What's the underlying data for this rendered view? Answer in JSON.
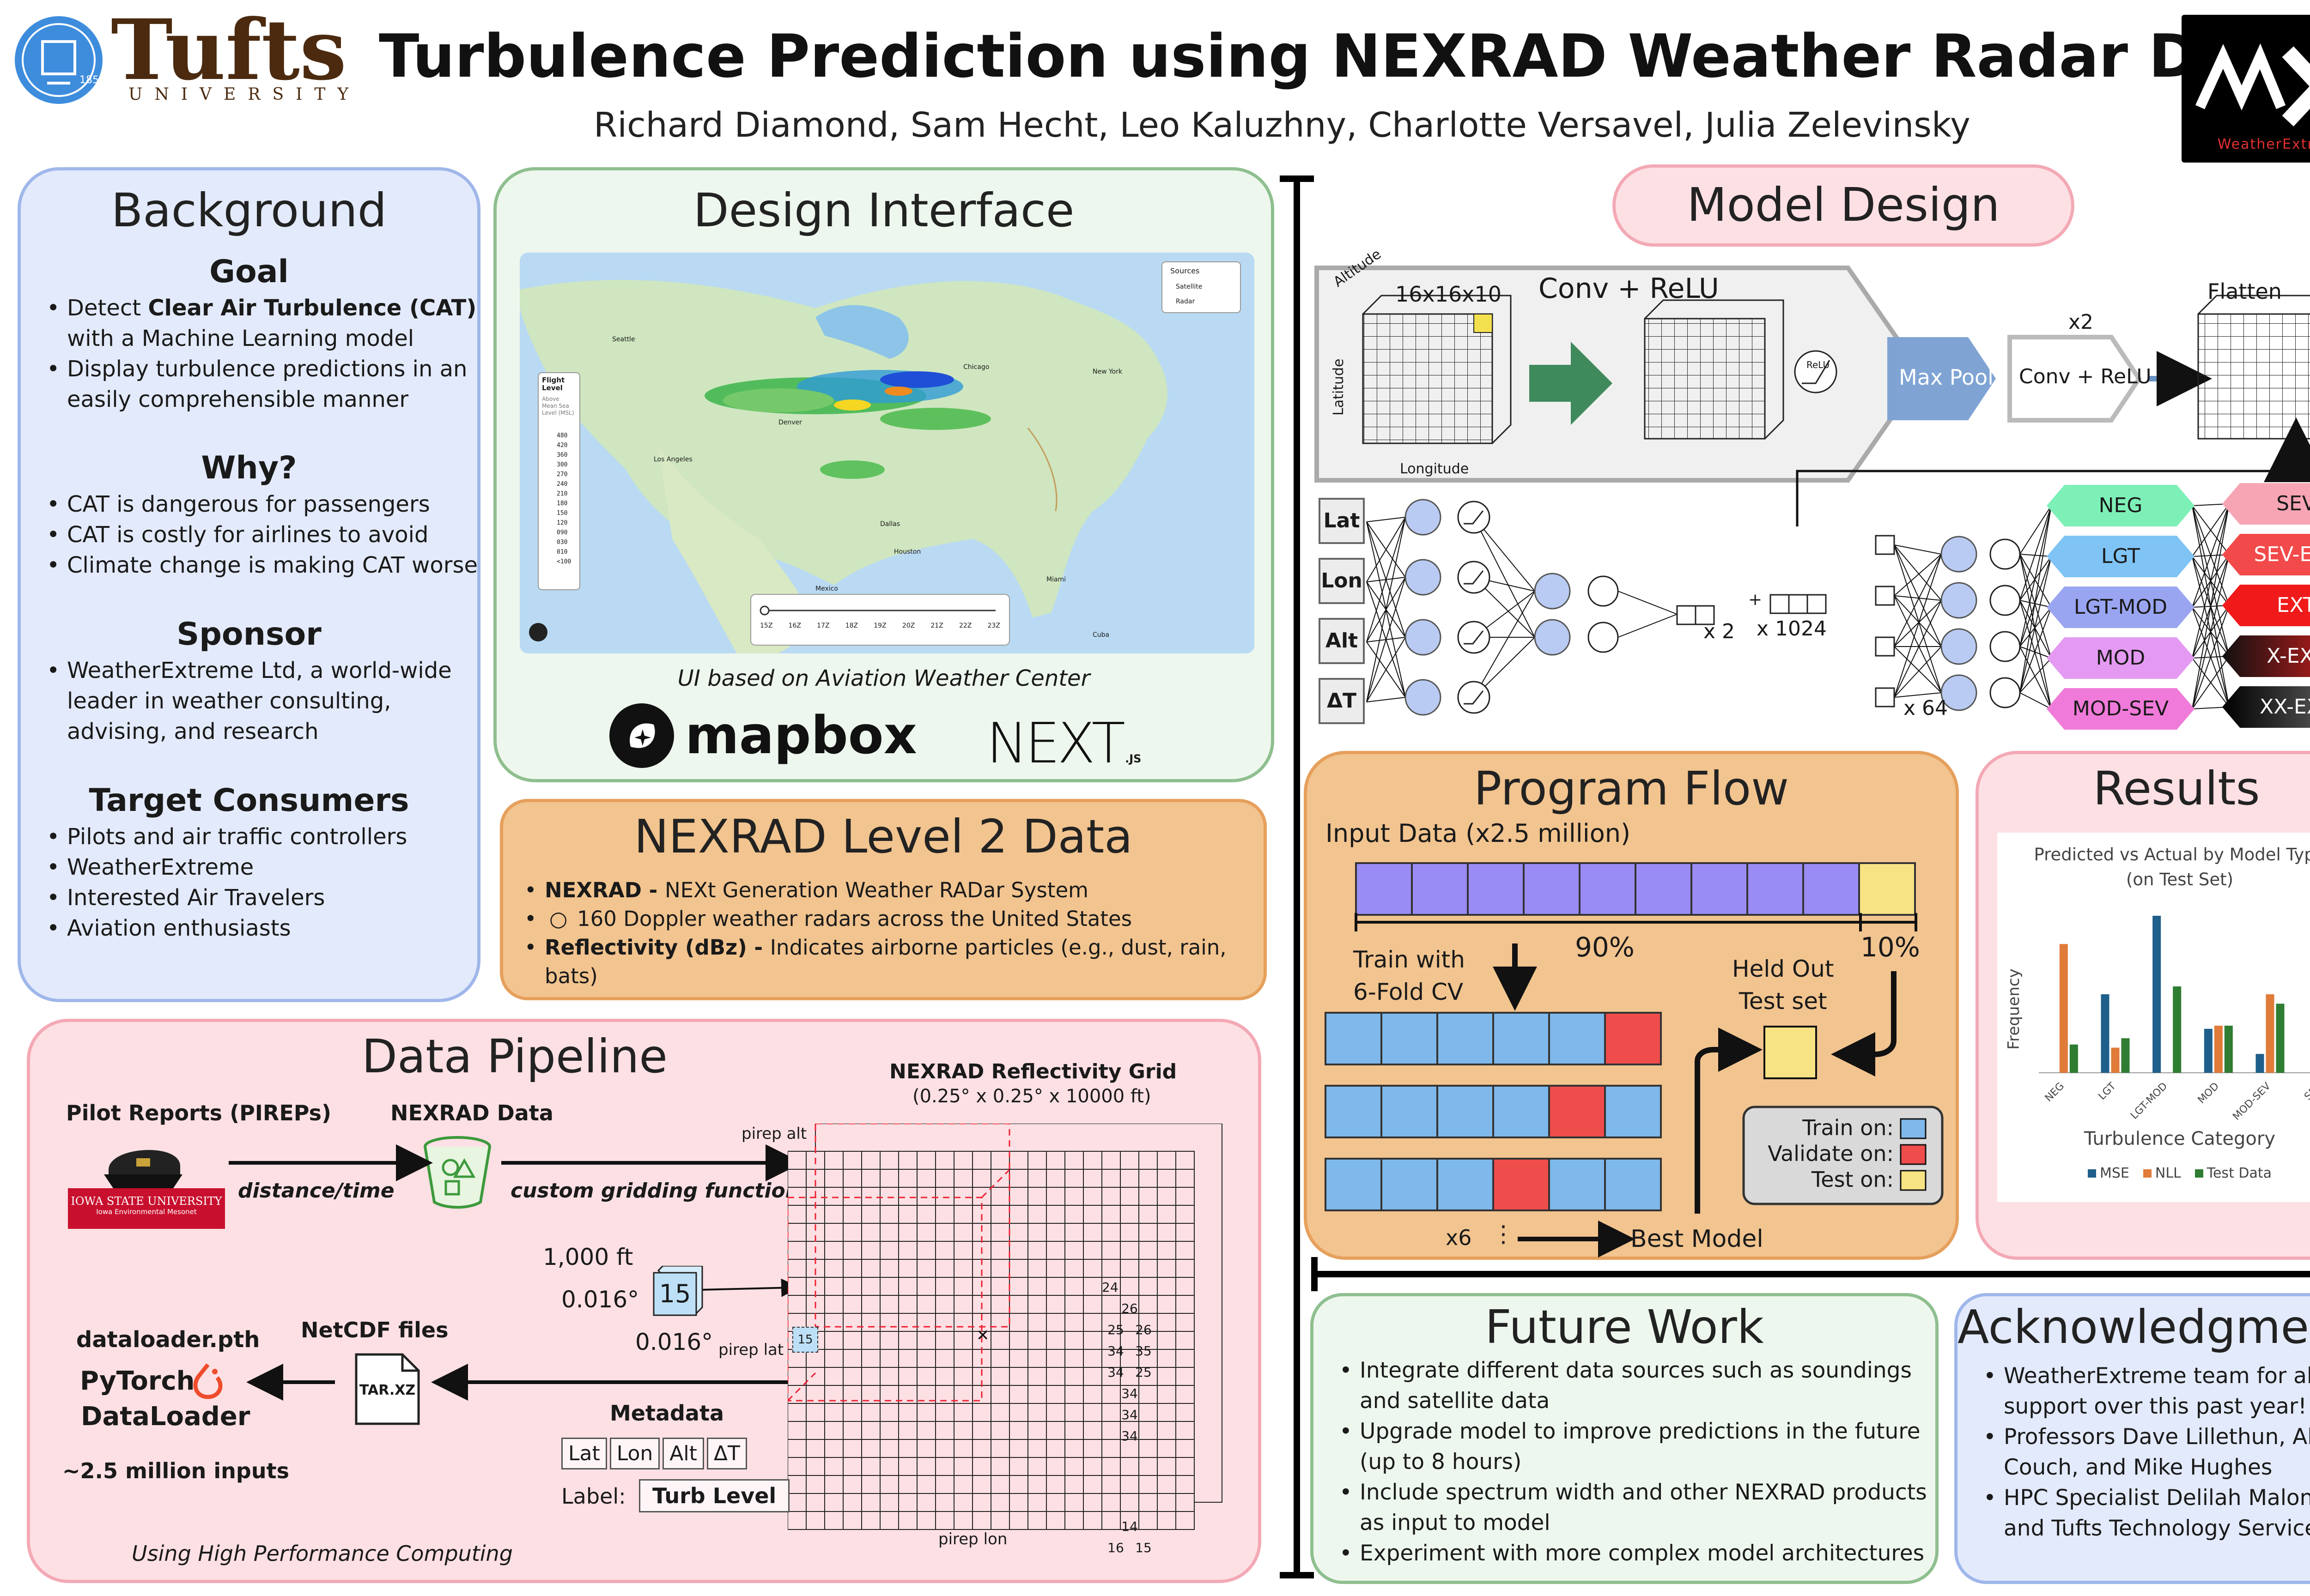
{
  "header": {
    "logo_left": "Tufts",
    "logo_left_sub": "UNIVERSITY",
    "seal_year": "1852",
    "title": "Turbulence Prediction using NEXRAD Weather Radar Data",
    "authors": "Richard Diamond, Sam Hecht, Leo Kaluzhny, Charlotte Versavel, Julia Zelevinsky",
    "logo_right": "WeatherExtreme"
  },
  "background": {
    "title": "Background",
    "goal": {
      "heading": "Goal",
      "items": [
        "Detect Clear Air Turbulence (CAT) with a Machine Learning model",
        "Display turbulence predictions in an easily comprehensible manner"
      ]
    },
    "why": {
      "heading": "Why?",
      "items": [
        "CAT is dangerous for passengers",
        "CAT is costly for airlines to avoid",
        "Climate change is making CAT worse"
      ]
    },
    "sponsor": {
      "heading": "Sponsor",
      "items": [
        "WeatherExtreme Ltd, a world-wide leader in weather consulting, advising, and research"
      ]
    },
    "consumers": {
      "heading": "Target Consumers",
      "items": [
        "Pilots and air traffic controllers",
        "WeatherExtreme",
        "Interested Air Travelers",
        "Aviation enthusiasts"
      ]
    }
  },
  "design": {
    "title": "Design Interface",
    "caption": "UI based on Aviation Weather Center",
    "mapbox": "mapbox",
    "next": "NEXT",
    "next_sub": ".JS",
    "map": {
      "sources_label": "Sources",
      "satellite": "Satellite",
      "radar": "Radar",
      "flight_level_title": "Flight Level",
      "flight_level_sub": "Above Mean Sea Level (MSL)",
      "levels": [
        "480",
        "420",
        "360",
        "300",
        "270",
        "240",
        "210",
        "180",
        "150",
        "120",
        "090",
        "030",
        "010",
        "<100"
      ],
      "times": [
        "15Z",
        "16Z",
        "17Z",
        "18Z",
        "19Z",
        "20Z",
        "21Z",
        "22Z",
        "23Z"
      ],
      "cities": [
        "Seattle",
        "Denver",
        "Los Angeles",
        "Chicago",
        "New York",
        "Dallas",
        "Houston",
        "Miami",
        "Cuba",
        "Mexico"
      ]
    }
  },
  "nexrad": {
    "title": "NEXRAD Level 2 Data",
    "b1_bold": "NEXRAD - ",
    "b1_text": "NEXt Generation Weather RADar System",
    "b1_sub": "160 Doppler weather radars across the United States",
    "b2_bold": "Reflectivity (dBz) - ",
    "b2_text": "Indicates airborne particles (e.g., dust, rain, bats)"
  },
  "pipeline": {
    "title": "Data Pipeline",
    "pireps": "Pilot Reports (PIREPs)",
    "iowa": "IOWA STATE UNIVERSITY",
    "iowa_sub": "Iowa Environmental Mesonet",
    "nexrad_data": "NEXRAD Data",
    "distance_time": "distance/time",
    "gridding": "custom gridding function",
    "grid_title": "NEXRAD Reflectivity Grid",
    "grid_sub": "(0.25° x 0.25° x 10000 ft)",
    "pirep_alt": "pirep alt",
    "pirep_lat": "pirep lat",
    "pirep_lon": "pirep lon",
    "cube_ft": "1,000 ft",
    "cube_deg1": "0.016°",
    "cube_deg2": "0.016°",
    "cube_value": "15",
    "dataloader_file": "dataloader.pth",
    "pytorch": "PyTorch",
    "dataloader": "DataLoader",
    "inputs": "~2.5 million inputs",
    "netcdf": "NetCDF files",
    "tarxz": "TAR.XZ",
    "metadata": "Metadata",
    "meta_cells": [
      "Lat",
      "Lon",
      "Alt",
      "ΔT"
    ],
    "label_key": "Label:",
    "label_val": "Turb Level",
    "hpc": "Using High Performance Computing",
    "grid_values": [
      "24",
      "26",
      "25",
      "26",
      "34",
      "35",
      "34",
      "25",
      "34",
      "34",
      "34",
      "14",
      "16",
      "15"
    ]
  },
  "model": {
    "title": "Model Design",
    "dims": "16x16x10",
    "altitude": "Altitude",
    "latitude": "Latitude",
    "longitude": "Longitude",
    "conv_relu": "Conv + ReLU",
    "relu": "ReLU",
    "maxpool": "Max Pool",
    "conv_relu2": "Conv + ReLU",
    "x2": "x2",
    "flatten": "Flatten",
    "inputs": [
      "Lat",
      "Lon",
      "Alt",
      "ΔT"
    ],
    "x2b": "x 2",
    "x1024": "x 1024",
    "plus": "+",
    "x64": "x 64",
    "classes_left": [
      "NEG",
      "LGT",
      "LGT-MOD",
      "MOD",
      "MOD-SEV"
    ],
    "classes_right": [
      "SEV",
      "SEV-EXT",
      "EXT",
      "X-EXT",
      "XX-EXT"
    ]
  },
  "flow": {
    "title": "Program Flow",
    "input": "Input Data (x2.5 million)",
    "pct_train": "90%",
    "pct_test": "10%",
    "train_cv": "Train with\n6-Fold CV",
    "held_out": "Held Out\nTest set",
    "x6": "x6",
    "dots": "⋮",
    "best": "Best Model",
    "legend": [
      "Train on:",
      "Validate on:",
      "Test on:"
    ]
  },
  "results": {
    "title": "Results",
    "chart_title": "Predicted vs Actual by Model Type",
    "chart_subtitle": "(on Test Set)",
    "ylabel": "Frequency",
    "xlabel": "Turbulence Category",
    "legend": [
      "MSE",
      "NLL",
      "Test Data"
    ]
  },
  "chart_data": {
    "type": "bar",
    "title": "Predicted vs Actual by Model Type",
    "subtitle": "(on Test Set)",
    "categories": [
      "NEG",
      "LGT",
      "LGT-MOD",
      "MOD",
      "MOD-SEV",
      "SEV"
    ],
    "xlabel": "Turbulence Category",
    "ylabel": "Frequency",
    "legend_position": "bottom",
    "series": [
      {
        "name": "MSE",
        "color": "#1f5f8b",
        "values": [
          0,
          0.5,
          1.0,
          0.28,
          0.12,
          0
        ]
      },
      {
        "name": "NLL",
        "color": "#e07b39",
        "values": [
          0.82,
          0.16,
          0,
          0.3,
          0.5,
          0
        ]
      },
      {
        "name": "Test Data",
        "color": "#2e7d32",
        "values": [
          0.18,
          0.22,
          0.55,
          0.3,
          0.44,
          0.03
        ]
      }
    ]
  },
  "future": {
    "title": "Future Work",
    "items": [
      "Integrate different data sources such as soundings and satellite data",
      "Upgrade model to improve predictions in the future (up to 8 hours)",
      "Include spectrum width and other NEXRAD products as input to model",
      "Experiment with more complex model architectures"
    ]
  },
  "ack": {
    "title": "Acknowledgments",
    "items": [
      "WeatherExtreme team for all their support over this past year!",
      "Professors Dave Lillethun, Alva Couch, and Mike Hughes",
      "HPC Specialist Delilah Maloney and Tufts Technology Services"
    ]
  },
  "colors": {
    "blue_panel": "#e3eafb",
    "green_panel": "#eef7ee",
    "orange_panel": "#f2c48f",
    "pink_panel": "#fde0e4",
    "purple_cell": "#9a8cf5",
    "blue_cell": "#7fb8ea",
    "red_cell": "#ef4c4c",
    "yellow_cell": "#f7e384"
  }
}
